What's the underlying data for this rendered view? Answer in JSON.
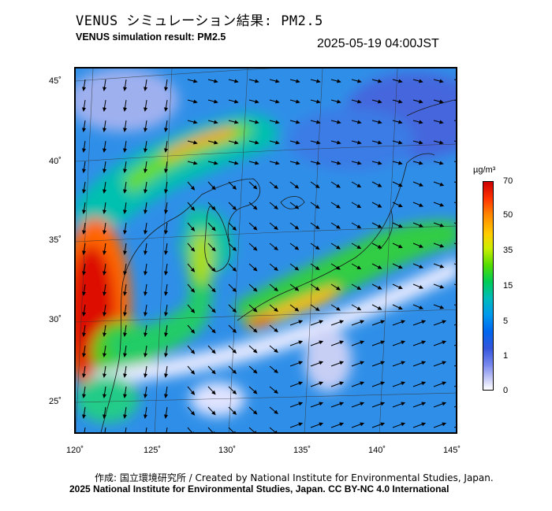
{
  "title": {
    "japanese": "VENUS シミュレーション結果: PM2.5",
    "english": "VENUS simulation result: PM2.5",
    "timestamp": "2025-05-19 04:00JST"
  },
  "map": {
    "latitude_labels": [
      "45˚",
      "40˚",
      "35˚",
      "30˚",
      "25˚"
    ],
    "longitude_labels": [
      "120˚",
      "125˚",
      "130˚",
      "135˚",
      "140˚",
      "145˚"
    ]
  },
  "legend": {
    "unit": "µg/m³",
    "ticks": [
      "70",
      "50",
      "35",
      "15",
      "5",
      "1",
      "0"
    ],
    "colors": {
      "max": "#cc0000",
      "high": "#ff8800",
      "mid_high": "#ffcc00",
      "mid": "#55dd00",
      "mid_low": "#00bbbb",
      "low": "#0066ee",
      "very_low": "#7788ee",
      "min": "#ffffff"
    }
  },
  "credits": {
    "line1": "作成: 国立環境研究所 / Created by National Institute for Environmental Studies, Japan.",
    "line2": "2025 National Institute for Environmental Studies, Japan. CC BY-NC 4.0 International"
  }
}
